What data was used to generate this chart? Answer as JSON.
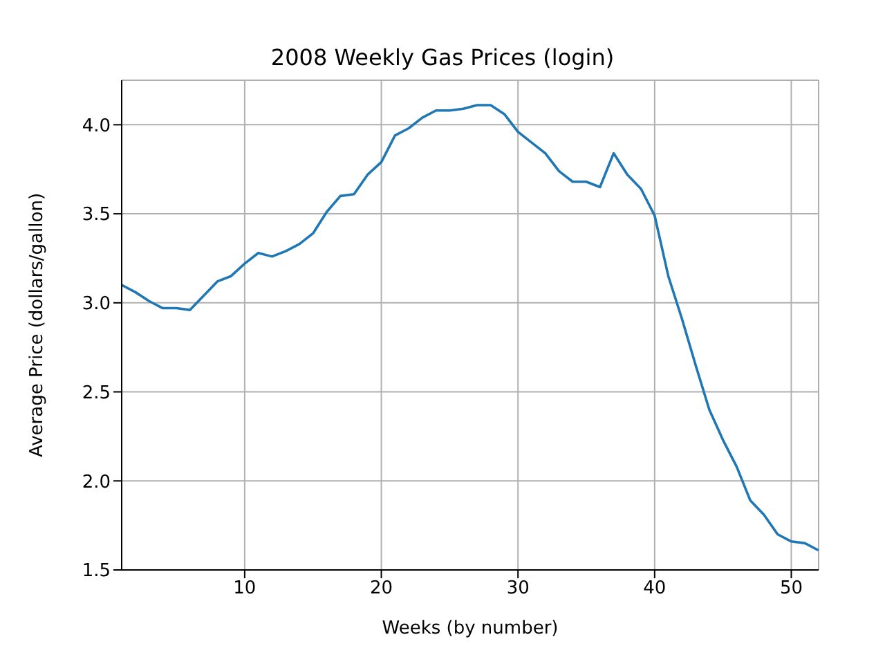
{
  "chart_data": {
    "type": "line",
    "title": "2008 Weekly Gas Prices (login)",
    "xlabel": "Weeks (by number)",
    "ylabel": "Average Price (dollars/gallon)",
    "x": [
      1,
      2,
      3,
      4,
      5,
      6,
      7,
      8,
      9,
      10,
      11,
      12,
      13,
      14,
      15,
      16,
      17,
      18,
      19,
      20,
      21,
      22,
      23,
      24,
      25,
      26,
      27,
      28,
      29,
      30,
      31,
      32,
      33,
      34,
      35,
      36,
      37,
      38,
      39,
      40,
      41,
      42,
      43,
      44,
      45,
      46,
      47,
      48,
      49,
      50,
      51,
      52
    ],
    "series": [
      {
        "color": "#1f77b4",
        "values": [
          3.1,
          3.06,
          3.01,
          2.97,
          2.97,
          2.96,
          3.04,
          3.12,
          3.15,
          3.22,
          3.28,
          3.26,
          3.29,
          3.33,
          3.39,
          3.51,
          3.6,
          3.61,
          3.72,
          3.79,
          3.94,
          3.98,
          4.04,
          4.08,
          4.08,
          4.09,
          4.11,
          4.11,
          4.06,
          3.96,
          3.9,
          3.84,
          3.74,
          3.68,
          3.68,
          3.65,
          3.84,
          3.72,
          3.64,
          3.49,
          3.15,
          2.91,
          2.65,
          2.4,
          2.23,
          2.08,
          1.89,
          1.81,
          1.7,
          1.66,
          1.65,
          1.61
        ]
      }
    ],
    "xlim": [
      1,
      52
    ],
    "xticks": [
      10,
      20,
      30,
      40,
      50
    ],
    "ylim": [
      1.5,
      4.25
    ],
    "yticks": [
      1.5,
      {
        "value": 2,
        "label": "2.0"
      },
      2.5,
      {
        "value": 3,
        "label": "3.0"
      },
      3.5,
      {
        "value": 4,
        "label": "4.0"
      }
    ],
    "grid": true,
    "line_style": "solid"
  }
}
